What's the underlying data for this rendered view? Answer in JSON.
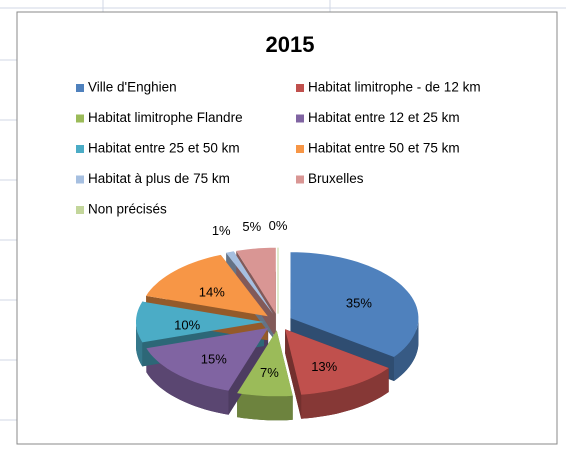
{
  "chart_data": {
    "type": "pie3d",
    "title": "2015",
    "categories": [
      "Ville d'Enghien",
      "Habitat limitrophe - de 12 km",
      "Habitat limitrophe Flandre",
      "Habitat entre 12 et 25 km",
      "Habitat entre 25 et 50  km",
      "Habitat entre 50 et 75  km",
      "Habitat à plus de 75 km",
      "Bruxelles",
      "Non précisés"
    ],
    "values": [
      35,
      13,
      7,
      15,
      10,
      14,
      1,
      5,
      0
    ],
    "value_labels": [
      "35%",
      "13%",
      "7%",
      "15%",
      "10%",
      "14%",
      "1%",
      "5%",
      "0%"
    ],
    "colors": [
      "#4f81bd",
      "#c0504d",
      "#9bbb59",
      "#8064a2",
      "#4bacc6",
      "#f79646",
      "#a6bfe0",
      "#d99694",
      "#c3d69b"
    ],
    "legend": "top"
  }
}
